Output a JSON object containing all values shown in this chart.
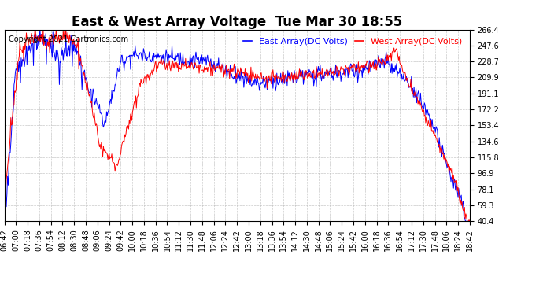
{
  "title": "East & West Array Voltage  Tue Mar 30 18:55",
  "copyright": "Copyright 2021 Cartronics.com",
  "legend_east": "East Array(DC Volts)",
  "legend_west": "West Array(DC Volts)",
  "east_color": "blue",
  "west_color": "red",
  "bg_color": "#ffffff",
  "grid_color": "#bbbbbb",
  "yticks": [
    40.4,
    59.3,
    78.1,
    96.9,
    115.8,
    134.6,
    153.4,
    172.2,
    191.1,
    209.9,
    228.7,
    247.6,
    266.4
  ],
  "ymin": 40.4,
  "ymax": 266.4,
  "xtick_labels": [
    "06:42",
    "07:00",
    "07:18",
    "07:36",
    "07:54",
    "08:12",
    "08:30",
    "08:48",
    "09:06",
    "09:24",
    "09:42",
    "10:00",
    "10:18",
    "10:36",
    "10:54",
    "11:12",
    "11:30",
    "11:48",
    "12:06",
    "12:24",
    "12:42",
    "13:00",
    "13:18",
    "13:36",
    "13:54",
    "14:12",
    "14:30",
    "14:48",
    "15:06",
    "15:24",
    "15:42",
    "16:00",
    "16:18",
    "16:36",
    "16:54",
    "17:12",
    "17:30",
    "17:48",
    "18:06",
    "18:24",
    "18:42"
  ],
  "title_fontsize": 12,
  "copyright_fontsize": 7,
  "axis_fontsize": 7,
  "legend_fontsize": 8,
  "line_width": 0.7
}
